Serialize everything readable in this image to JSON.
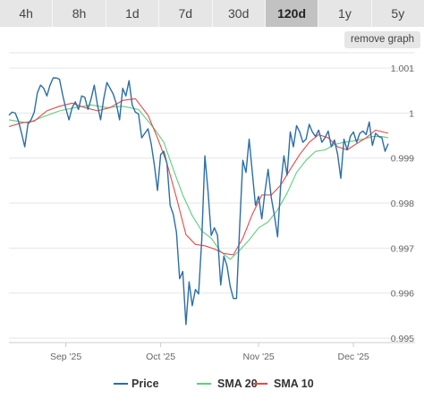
{
  "ranges": [
    {
      "label": "4h"
    },
    {
      "label": "8h"
    },
    {
      "label": "1d"
    },
    {
      "label": "7d"
    },
    {
      "label": "30d"
    },
    {
      "label": "120d",
      "active": true
    },
    {
      "label": "1y"
    },
    {
      "label": "5y"
    }
  ],
  "remove_graph_label": "remove graph",
  "colors": {
    "price": "#2b6ea8",
    "sma20": "#5ccf7c",
    "sma10": "#e84848",
    "grid": "#e6e6e6"
  },
  "chart_data": {
    "type": "line",
    "title": "",
    "xlabel": "",
    "ylabel": "",
    "x_start": "2025-08-14",
    "x_end": "2025-12-12",
    "x_ticks": [
      {
        "label": "Sep '25",
        "date": "2025-09-01"
      },
      {
        "label": "Oct '25",
        "date": "2025-10-01"
      },
      {
        "label": "Nov '25",
        "date": "2025-11-01"
      },
      {
        "label": "Dec '25",
        "date": "2025-12-01"
      }
    ],
    "y_ticks": [
      0.995,
      0.996,
      0.997,
      0.998,
      0.999,
      1,
      1.001
    ],
    "y_tick_labels": [
      "0.995",
      "0.996",
      "0.997",
      "0.998",
      "0.999",
      "1",
      "1.001"
    ],
    "ylim": [
      0.9949,
      1.0012
    ],
    "grid": true,
    "legend_position": "bottom",
    "series": [
      {
        "name": "Price",
        "color": "#2b6ea8",
        "values": [
          [
            "2025-08-14",
            0.99995
          ],
          [
            "2025-08-15",
            1.00002
          ],
          [
            "2025-08-16",
            1.0
          ],
          [
            "2025-08-17",
            0.99982
          ],
          [
            "2025-08-18",
            0.99955
          ],
          [
            "2025-08-19",
            0.99925
          ],
          [
            "2025-08-20",
            0.99975
          ],
          [
            "2025-08-21",
            0.99985
          ],
          [
            "2025-08-22",
            1.00002
          ],
          [
            "2025-08-23",
            1.00045
          ],
          [
            "2025-08-24",
            1.00062
          ],
          [
            "2025-08-25",
            1.00055
          ],
          [
            "2025-08-26",
            1.00038
          ],
          [
            "2025-08-27",
            1.00062
          ],
          [
            "2025-08-28",
            1.00078
          ],
          [
            "2025-08-29",
            1.00078
          ],
          [
            "2025-08-30",
            1.00075
          ],
          [
            "2025-08-31",
            1.0004
          ],
          [
            "2025-09-01",
            1.0001
          ],
          [
            "2025-09-02",
            0.99985
          ],
          [
            "2025-09-03",
            1.00012
          ],
          [
            "2025-09-04",
            1.00025
          ],
          [
            "2025-09-05",
            1.00008
          ],
          [
            "2025-09-06",
            1.00038
          ],
          [
            "2025-09-07",
            1.00035
          ],
          [
            "2025-09-08",
            1.00008
          ],
          [
            "2025-09-09",
            1.00032
          ],
          [
            "2025-09-10",
            1.00062
          ],
          [
            "2025-09-11",
            1.00018
          ],
          [
            "2025-09-12",
            0.99985
          ],
          [
            "2025-09-13",
            1.00032
          ],
          [
            "2025-09-14",
            1.00068
          ],
          [
            "2025-09-15",
            1.00055
          ],
          [
            "2025-09-16",
            1.00042
          ],
          [
            "2025-09-17",
            1.0002
          ],
          [
            "2025-09-18",
            0.99985
          ],
          [
            "2025-09-19",
            1.00055
          ],
          [
            "2025-09-20",
            1.00038
          ],
          [
            "2025-09-21",
            1.00072
          ],
          [
            "2025-09-22",
            1.00018
          ],
          [
            "2025-09-23",
            1.00002
          ],
          [
            "2025-09-24",
            0.99998
          ],
          [
            "2025-09-25",
            0.99945
          ],
          [
            "2025-09-26",
            0.99955
          ],
          [
            "2025-09-27",
            0.99965
          ],
          [
            "2025-09-28",
            0.99932
          ],
          [
            "2025-09-29",
            0.99885
          ],
          [
            "2025-09-30",
            0.99828
          ],
          [
            "2025-10-01",
            0.99908
          ],
          [
            "2025-10-02",
            0.99915
          ],
          [
            "2025-10-03",
            0.99888
          ],
          [
            "2025-10-04",
            0.99795
          ],
          [
            "2025-10-05",
            0.99775
          ],
          [
            "2025-10-06",
            0.99735
          ],
          [
            "2025-10-07",
            0.99632
          ],
          [
            "2025-10-08",
            0.99648
          ],
          [
            "2025-10-09",
            0.9953
          ],
          [
            "2025-10-10",
            0.99625
          ],
          [
            "2025-10-11",
            0.99572
          ],
          [
            "2025-10-12",
            0.99608
          ],
          [
            "2025-10-13",
            0.99598
          ],
          [
            "2025-10-14",
            0.99718
          ],
          [
            "2025-10-15",
            0.99905
          ],
          [
            "2025-10-16",
            0.99825
          ],
          [
            "2025-10-17",
            0.99728
          ],
          [
            "2025-10-18",
            0.99745
          ],
          [
            "2025-10-19",
            0.99728
          ],
          [
            "2025-10-20",
            0.99618
          ],
          [
            "2025-10-21",
            0.99682
          ],
          [
            "2025-10-22",
            0.9966
          ],
          [
            "2025-10-23",
            0.99615
          ],
          [
            "2025-10-24",
            0.99588
          ],
          [
            "2025-10-25",
            0.99588
          ],
          [
            "2025-10-26",
            0.99748
          ],
          [
            "2025-10-27",
            0.99895
          ],
          [
            "2025-10-28",
            0.99868
          ],
          [
            "2025-10-29",
            0.99942
          ],
          [
            "2025-10-30",
            0.99868
          ],
          [
            "2025-10-31",
            0.99795
          ],
          [
            "2025-11-01",
            0.99815
          ],
          [
            "2025-11-02",
            0.99765
          ],
          [
            "2025-11-03",
            0.99825
          ],
          [
            "2025-11-04",
            0.99875
          ],
          [
            "2025-11-05",
            0.99812
          ],
          [
            "2025-11-06",
            0.99772
          ],
          [
            "2025-11-07",
            0.99725
          ],
          [
            "2025-11-08",
            0.99842
          ],
          [
            "2025-11-09",
            0.99905
          ],
          [
            "2025-11-10",
            0.99862
          ],
          [
            "2025-11-11",
            0.99958
          ],
          [
            "2025-11-12",
            0.99925
          ],
          [
            "2025-11-13",
            0.99972
          ],
          [
            "2025-11-14",
            0.99958
          ],
          [
            "2025-11-15",
            0.99935
          ],
          [
            "2025-11-16",
            0.99942
          ],
          [
            "2025-11-17",
            0.99975
          ],
          [
            "2025-11-18",
            0.99958
          ],
          [
            "2025-11-19",
            0.99948
          ],
          [
            "2025-11-20",
            0.99962
          ],
          [
            "2025-11-21",
            0.99935
          ],
          [
            "2025-11-22",
            0.99945
          ],
          [
            "2025-11-23",
            0.9996
          ],
          [
            "2025-11-24",
            0.99925
          ],
          [
            "2025-11-25",
            0.9994
          ],
          [
            "2025-11-26",
            0.99908
          ],
          [
            "2025-11-27",
            0.99855
          ],
          [
            "2025-11-28",
            0.99942
          ],
          [
            "2025-11-29",
            0.99918
          ],
          [
            "2025-11-30",
            0.99948
          ],
          [
            "2025-12-01",
            0.99958
          ],
          [
            "2025-12-02",
            0.99935
          ],
          [
            "2025-12-03",
            0.99955
          ],
          [
            "2025-12-04",
            0.9996
          ],
          [
            "2025-12-05",
            0.99952
          ],
          [
            "2025-12-06",
            0.9998
          ],
          [
            "2025-12-07",
            0.99928
          ],
          [
            "2025-12-08",
            0.99955
          ],
          [
            "2025-12-09",
            0.99948
          ],
          [
            "2025-12-10",
            0.99945
          ],
          [
            "2025-12-11",
            0.99915
          ],
          [
            "2025-12-12",
            0.99932
          ]
        ]
      },
      {
        "name": "SMA 20",
        "color": "#5ccf7c",
        "values": [
          [
            "2025-08-14",
            0.99985
          ],
          [
            "2025-08-20",
            0.99978
          ],
          [
            "2025-08-25",
            0.99992
          ],
          [
            "2025-08-30",
            1.00005
          ],
          [
            "2025-09-04",
            1.00012
          ],
          [
            "2025-09-09",
            1.00018
          ],
          [
            "2025-09-14",
            1.00012
          ],
          [
            "2025-09-19",
            1.00015
          ],
          [
            "2025-09-24",
            1.00008
          ],
          [
            "2025-09-29",
            0.99965
          ],
          [
            "2025-10-02",
            0.99935
          ],
          [
            "2025-10-05",
            0.99875
          ],
          [
            "2025-10-08",
            0.99818
          ],
          [
            "2025-10-11",
            0.99772
          ],
          [
            "2025-10-14",
            0.99738
          ],
          [
            "2025-10-17",
            0.99722
          ],
          [
            "2025-10-20",
            0.99692
          ],
          [
            "2025-10-23",
            0.99675
          ],
          [
            "2025-10-26",
            0.99695
          ],
          [
            "2025-10-29",
            0.99718
          ],
          [
            "2025-11-01",
            0.99745
          ],
          [
            "2025-11-04",
            0.99758
          ],
          [
            "2025-11-07",
            0.99785
          ],
          [
            "2025-11-10",
            0.99822
          ],
          [
            "2025-11-13",
            0.99868
          ],
          [
            "2025-11-16",
            0.99895
          ],
          [
            "2025-11-19",
            0.99915
          ],
          [
            "2025-11-22",
            0.99918
          ],
          [
            "2025-11-25",
            0.9993
          ],
          [
            "2025-11-28",
            0.99935
          ],
          [
            "2025-12-01",
            0.99938
          ],
          [
            "2025-12-04",
            0.99942
          ],
          [
            "2025-12-07",
            0.99948
          ],
          [
            "2025-12-10",
            0.99948
          ],
          [
            "2025-12-12",
            0.99945
          ]
        ]
      },
      {
        "name": "SMA 10",
        "color": "#e84848",
        "values": [
          [
            "2025-08-14",
            0.9997
          ],
          [
            "2025-08-18",
            0.99978
          ],
          [
            "2025-08-22",
            0.99982
          ],
          [
            "2025-08-26",
            1.00005
          ],
          [
            "2025-08-30",
            1.00015
          ],
          [
            "2025-09-03",
            1.00022
          ],
          [
            "2025-09-07",
            1.00012
          ],
          [
            "2025-09-11",
            1.00005
          ],
          [
            "2025-09-15",
            1.00012
          ],
          [
            "2025-09-19",
            1.00028
          ],
          [
            "2025-09-23",
            1.00032
          ],
          [
            "2025-09-27",
            0.99995
          ],
          [
            "2025-09-30",
            0.99945
          ],
          [
            "2025-10-03",
            0.99888
          ],
          [
            "2025-10-06",
            0.99812
          ],
          [
            "2025-10-09",
            0.9973
          ],
          [
            "2025-10-12",
            0.99708
          ],
          [
            "2025-10-15",
            0.99705
          ],
          [
            "2025-10-18",
            0.99698
          ],
          [
            "2025-10-21",
            0.99688
          ],
          [
            "2025-10-24",
            0.99685
          ],
          [
            "2025-10-27",
            0.99722
          ],
          [
            "2025-10-30",
            0.99775
          ],
          [
            "2025-11-02",
            0.99818
          ],
          [
            "2025-11-05",
            0.99818
          ],
          [
            "2025-11-08",
            0.9984
          ],
          [
            "2025-11-11",
            0.99875
          ],
          [
            "2025-11-14",
            0.99908
          ],
          [
            "2025-11-17",
            0.99935
          ],
          [
            "2025-11-20",
            0.99952
          ],
          [
            "2025-11-23",
            0.99945
          ],
          [
            "2025-11-26",
            0.99925
          ],
          [
            "2025-11-29",
            0.99918
          ],
          [
            "2025-12-02",
            0.99932
          ],
          [
            "2025-12-05",
            0.99945
          ],
          [
            "2025-12-08",
            0.99962
          ],
          [
            "2025-12-12",
            0.99955
          ]
        ]
      }
    ]
  }
}
